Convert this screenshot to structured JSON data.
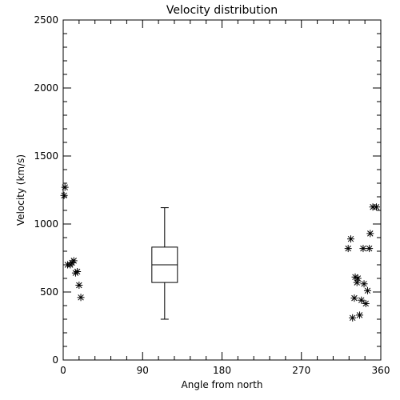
{
  "chart_data": {
    "type": "scatter",
    "title": "Velocity distribution",
    "xlabel": "Angle from north",
    "ylabel": "Velocity (km/s)",
    "xlim": [
      0,
      360
    ],
    "ylim": [
      0,
      2500
    ],
    "xticks": [
      0,
      90,
      180,
      270,
      360
    ],
    "yticks": [
      0,
      500,
      1000,
      1500,
      2000,
      2500
    ],
    "xtick_labels": [
      "0",
      "90",
      "180",
      "270",
      "360"
    ],
    "ytick_labels": [
      "0",
      "500",
      "1000",
      "1500",
      "2000",
      "2500"
    ],
    "grid": false,
    "marker": "asterisk",
    "series": [
      {
        "points": [
          {
            "x": 1,
            "y": 1210
          },
          {
            "x": 2,
            "y": 1270
          },
          {
            "x": 5,
            "y": 700
          },
          {
            "x": 8,
            "y": 700
          },
          {
            "x": 10,
            "y": 715
          },
          {
            "x": 12,
            "y": 730
          },
          {
            "x": 14,
            "y": 640
          },
          {
            "x": 16,
            "y": 650
          },
          {
            "x": 18,
            "y": 550
          },
          {
            "x": 20,
            "y": 460
          },
          {
            "x": 323,
            "y": 820
          },
          {
            "x": 326,
            "y": 890
          },
          {
            "x": 328,
            "y": 310
          },
          {
            "x": 330,
            "y": 455
          },
          {
            "x": 331,
            "y": 610
          },
          {
            "x": 333,
            "y": 570
          },
          {
            "x": 334,
            "y": 600
          },
          {
            "x": 336,
            "y": 330
          },
          {
            "x": 338,
            "y": 440
          },
          {
            "x": 340,
            "y": 820
          },
          {
            "x": 341,
            "y": 560
          },
          {
            "x": 343,
            "y": 415
          },
          {
            "x": 345,
            "y": 510
          },
          {
            "x": 347,
            "y": 820
          },
          {
            "x": 348,
            "y": 930
          },
          {
            "x": 351,
            "y": 1125
          },
          {
            "x": 355,
            "y": 1125
          }
        ]
      }
    ],
    "boxplot": {
      "x": 115,
      "min": 300,
      "q1": 570,
      "median": 700,
      "q3": 830,
      "max": 1120
    }
  }
}
